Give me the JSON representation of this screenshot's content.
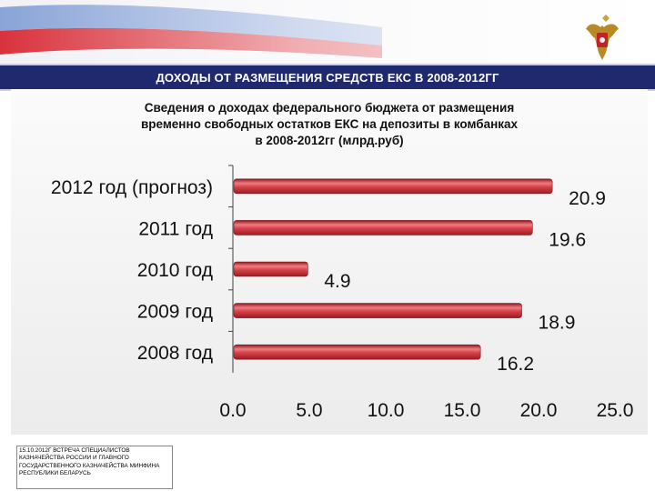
{
  "header": {
    "title": "ДОХОДЫ ОТ РАЗМЕЩЕНИЯ СРЕДСТВ ЕКС В 2008-2012ГГ"
  },
  "colors": {
    "banner": "#1f2a6e",
    "bar": "#c8323a",
    "bar_highlight": "#f07b80"
  },
  "icons": {
    "emblem": "double-headed-eagle-emblem-icon"
  },
  "footer": {
    "text": "15.10.2012г ВСТРЕЧА СПЕЦИАЛИСТОВ КАЗНАЧЕЙСТВА РОССИИ И ГЛАВНОГО ГОСУДАРСТВЕННОГО КАЗНАЧЕЙСТВА МИНФИНА РЕСПУБЛИКИ БЕЛАРУСЬ"
  },
  "chart_data": {
    "type": "bar",
    "orientation": "horizontal",
    "title": "Сведения  о доходах федерального бюджета от размещения временно свободных остатков ЕКС на депозиты в комбанках в 2008-2012гг (млрд.руб)",
    "title_lines": [
      "Сведения  о доходах федерального бюджета от размещения",
      "временно свободных остатков ЕКС на депозиты в комбанках",
      "в 2008-2012гг (млрд.руб)"
    ],
    "categories": [
      "2012 год (прогноз)",
      "2011 год",
      "2010 год",
      "2009 год",
      "2008 год"
    ],
    "values": [
      20.9,
      19.6,
      4.9,
      18.9,
      16.2
    ],
    "value_labels": [
      "20.9",
      "19.6",
      "4.9",
      "18.9",
      "16.2"
    ],
    "xlim": [
      0,
      25
    ],
    "x_ticks": [
      "0.0",
      "5.0",
      "10.0",
      "15.0",
      "20.0",
      "25.0"
    ],
    "xlabel": "",
    "ylabel": "",
    "grid": false,
    "legend": "none"
  }
}
